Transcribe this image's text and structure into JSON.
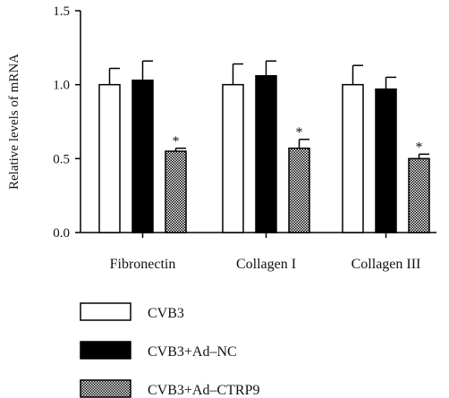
{
  "chart_data": {
    "type": "bar",
    "ylabel": "Relative levels of mRNA",
    "xlabel": "",
    "ylim": [
      0,
      1.5
    ],
    "yticks": [
      "0.0",
      "0.5",
      "1.0",
      "1.5"
    ],
    "categories": [
      "Fibronectin",
      "Collagen I",
      "Collagen III"
    ],
    "series": [
      {
        "name": "CVB3",
        "values": [
          1.0,
          1.0,
          1.0
        ],
        "errors": [
          0.11,
          0.14,
          0.13
        ],
        "fill": "white"
      },
      {
        "name": "CVB3+Ad–NC",
        "values": [
          1.03,
          1.06,
          0.97
        ],
        "errors": [
          0.13,
          0.1,
          0.08
        ],
        "fill": "black"
      },
      {
        "name": "CVB3+Ad–CTRP9",
        "values": [
          0.55,
          0.57,
          0.5
        ],
        "errors": [
          0.02,
          0.06,
          0.03
        ],
        "fill": "checkered",
        "significance": [
          "*",
          "*",
          "*"
        ]
      }
    ],
    "legend_position": "bottom-left",
    "grid": false
  }
}
